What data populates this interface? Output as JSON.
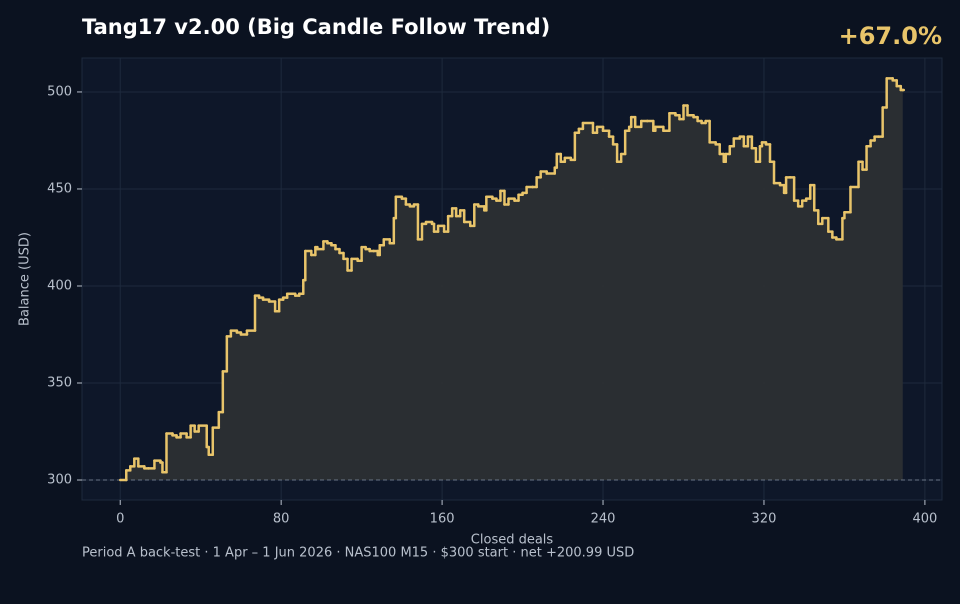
{
  "chart_data": {
    "type": "step",
    "title": "Tang17 v2.00 (Big Candle Follow Trend)",
    "annotation": "+67.0%",
    "xlabel": "Closed deals",
    "ylabel": "Balance (USD)",
    "footer": "Period A back-test  ·  1 Apr – 1 Jun 2026  ·  NAS100 M15  ·  $300 start  ·  net +200.99 USD",
    "color": "#e8c46a",
    "fill_color": "#2c2f33",
    "grid": true,
    "reference_line": 300,
    "xlim": [
      -19,
      408.5
    ],
    "ylim": [
      289.7,
      517.5
    ],
    "xticks": [
      0,
      80,
      160,
      240,
      320,
      400
    ],
    "yticks": [
      300,
      350,
      400,
      450,
      500
    ],
    "x": [
      0,
      3,
      5,
      7,
      9,
      12,
      14,
      17,
      20,
      21,
      23,
      26,
      28,
      30,
      33,
      35,
      37,
      39,
      43,
      44,
      46,
      49,
      51,
      53,
      55,
      58,
      60,
      63,
      67,
      69,
      71,
      74,
      77,
      79,
      81,
      83,
      87,
      89,
      91,
      92,
      95,
      97,
      98,
      101,
      103,
      105,
      107,
      109,
      111,
      113,
      115,
      118,
      120,
      122,
      124,
      126,
      128,
      129,
      131,
      134,
      136,
      137,
      140,
      142,
      144,
      146,
      148,
      150,
      152,
      155,
      156,
      158,
      161,
      163,
      165,
      167,
      169,
      171,
      174,
      176,
      178,
      181,
      182,
      185,
      187,
      189,
      191,
      193,
      196,
      198,
      200,
      202,
      205,
      207,
      209,
      212,
      216,
      217,
      219,
      221,
      224,
      226,
      228,
      230,
      235,
      237,
      240,
      243,
      245,
      247,
      249,
      251,
      253,
      254,
      256,
      259,
      262,
      265,
      266,
      270,
      273,
      276,
      278,
      280,
      282,
      285,
      287,
      289,
      291,
      293,
      296,
      298,
      300,
      301,
      303,
      305,
      308,
      310,
      312,
      314,
      316,
      318,
      319,
      321,
      323,
      325,
      328,
      330,
      331,
      333,
      335,
      337,
      339,
      341,
      343,
      345,
      347,
      349,
      352,
      354,
      356,
      359,
      360,
      363,
      367,
      369,
      371,
      373,
      375,
      377,
      379,
      381,
      384,
      386,
      388,
      389
    ],
    "values": [
      300,
      305,
      307,
      311,
      307,
      306,
      306,
      310,
      309,
      304,
      324,
      323,
      322,
      324,
      322,
      328,
      325,
      328,
      317,
      313,
      327,
      335,
      356,
      374,
      377,
      376,
      375,
      377,
      395,
      394,
      393,
      392,
      387,
      393,
      394,
      396,
      395,
      396,
      403,
      418,
      416,
      420,
      419,
      423,
      422,
      421,
      419,
      417,
      414,
      408,
      414,
      413,
      420,
      419,
      418,
      418,
      416,
      421,
      424,
      422,
      435,
      446,
      445,
      442,
      441,
      442,
      424,
      432,
      433,
      432,
      428,
      431,
      428,
      436,
      440,
      436,
      439,
      433,
      431,
      442,
      441,
      439,
      446,
      445,
      444,
      449,
      442,
      445,
      444,
      447,
      448,
      451,
      451,
      456,
      459,
      458,
      461,
      468,
      464,
      466,
      465,
      479,
      481,
      484,
      479,
      482,
      480,
      477,
      473,
      464,
      468,
      480,
      482,
      487,
      482,
      485,
      485,
      480,
      482,
      480,
      489,
      488,
      486,
      493,
      488,
      487,
      485,
      484,
      485,
      474,
      473,
      468,
      464,
      468,
      472,
      476,
      477,
      472,
      477,
      471,
      464,
      472,
      474,
      473,
      464,
      453,
      452,
      448,
      456,
      456,
      444,
      441,
      444,
      445,
      452,
      439,
      432,
      435,
      428,
      425,
      424,
      435,
      438,
      451,
      464,
      460,
      472,
      475,
      477,
      477,
      492,
      507,
      506,
      503,
      501,
      501
    ]
  }
}
